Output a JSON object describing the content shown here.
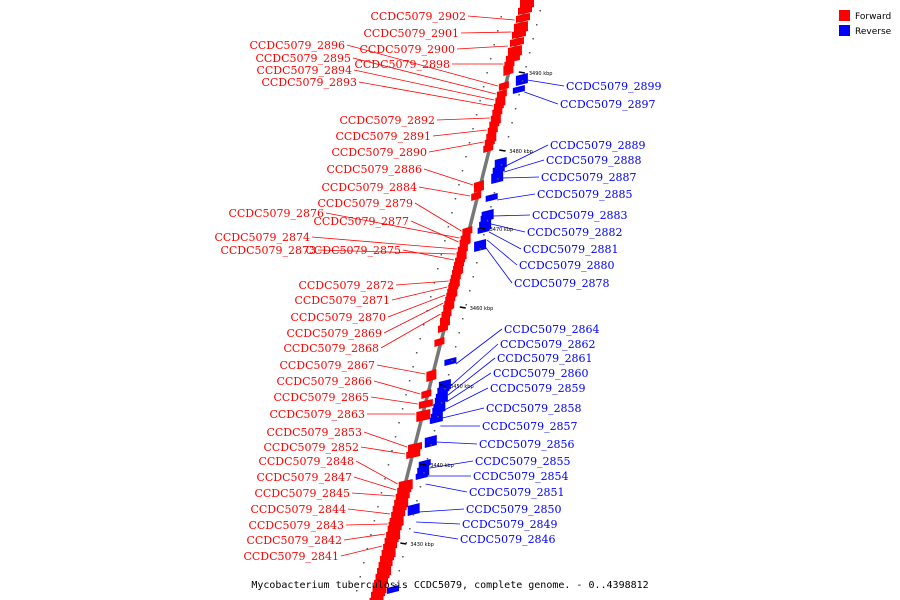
{
  "colors": {
    "forward": "#ff0000",
    "reverse": "#0000ff",
    "backbone": "#777777"
  },
  "legend": {
    "forward": "Forward",
    "reverse": "Reverse"
  },
  "caption": "Mycobacterium tuberculosis CCDC5079, complete genome. - 0..4398812",
  "ticks": [
    "3490 kbp",
    "3480 kbp",
    "3470 kbp",
    "3460 kbp",
    "3450 kbp",
    "3440 kbp",
    "3430 kbp"
  ],
  "forward_labels": [
    "CCDC5079_2902",
    "CCDC5079_2901",
    "CCDC5079_2900",
    "CCDC5079_2898",
    "CCDC5079_2896",
    "CCDC5079_2895",
    "CCDC5079_2894",
    "CCDC5079_2893",
    "CCDC5079_2892",
    "CCDC5079_2891",
    "CCDC5079_2890",
    "CCDC5079_2886",
    "CCDC5079_2884",
    "CCDC5079_2879",
    "CCDC5079_2876",
    "CCDC5079_2877",
    "CCDC5079_2874",
    "CCDC5079_2873",
    "CCDC5079_2875",
    "CCDC5079_2872",
    "CCDC5079_2871",
    "CCDC5079_2870",
    "CCDC5079_2869",
    "CCDC5079_2868",
    "CCDC5079_2867",
    "CCDC5079_2866",
    "CCDC5079_2865",
    "CCDC5079_2863",
    "CCDC5079_2853",
    "CCDC5079_2852",
    "CCDC5079_2848",
    "CCDC5079_2847",
    "CCDC5079_2845",
    "CCDC5079_2844",
    "CCDC5079_2843",
    "CCDC5079_2842",
    "CCDC5079_2841"
  ],
  "reverse_labels": [
    "CCDC5079_2899",
    "CCDC5079_2897",
    "CCDC5079_2889",
    "CCDC5079_2888",
    "CCDC5079_2887",
    "CCDC5079_2885",
    "CCDC5079_2883",
    "CCDC5079_2882",
    "CCDC5079_2881",
    "CCDC5079_2880",
    "CCDC5079_2878",
    "CCDC5079_2864",
    "CCDC5079_2862",
    "CCDC5079_2861",
    "CCDC5079_2860",
    "CCDC5079_2859",
    "CCDC5079_2858",
    "CCDC5079_2857",
    "CCDC5079_2856",
    "CCDC5079_2855",
    "CCDC5079_2854",
    "CCDC5079_2851",
    "CCDC5079_2850",
    "CCDC5079_2849",
    "CCDC5079_2846"
  ]
}
